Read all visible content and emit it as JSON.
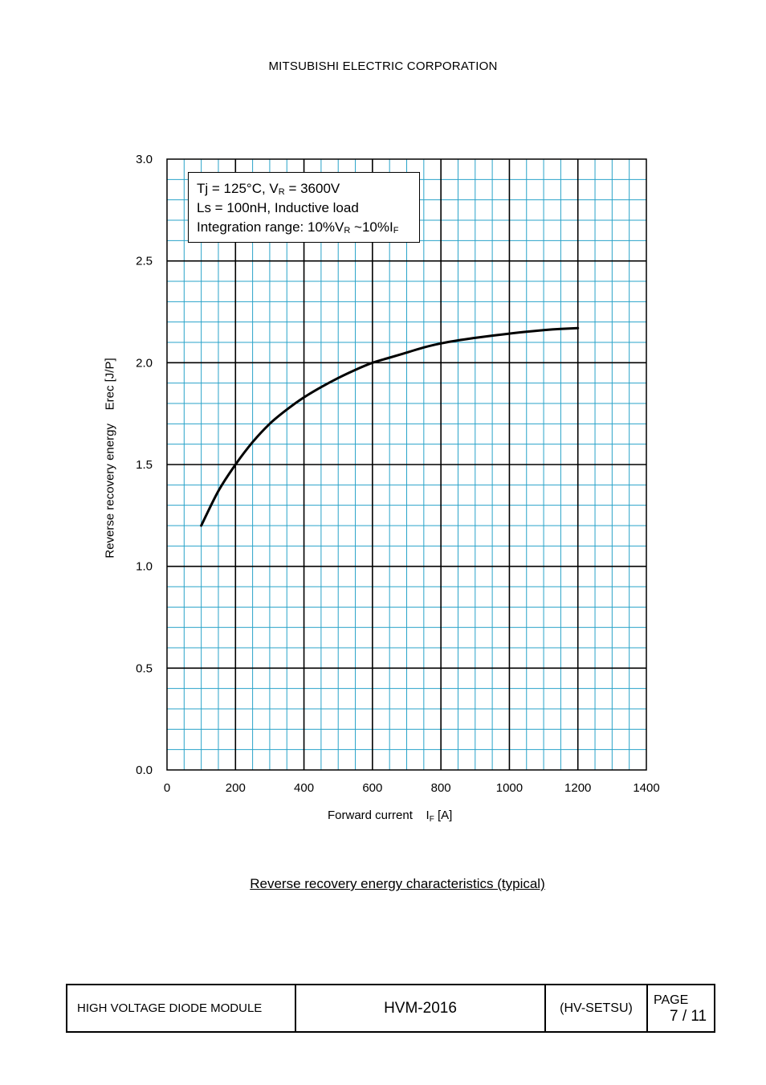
{
  "header": {
    "company": "MITSUBISHI ELECTRIC CORPORATION"
  },
  "annotation": {
    "line1_a": "Tj = 125°C, V",
    "line1_sub": "R",
    "line1_b": " = 3600V",
    "line2": "Ls = 100nH, Inductive load",
    "line3_a": "Integration range: 10%V",
    "line3_sub1": "R",
    "line3_b": " ~10%I",
    "line3_sub2": "F"
  },
  "chart_data": {
    "type": "line",
    "title": "",
    "caption": "Reverse recovery energy characteristics (typical)",
    "xlabel": {
      "text": "Forward current    I",
      "sub": "F",
      "unit": " [A]"
    },
    "ylabel": "Reverse recovery energy    Erec [J/P]",
    "xlim": [
      0,
      1400
    ],
    "ylim": [
      0.0,
      3.0
    ],
    "x_ticks": [
      "0",
      "200",
      "400",
      "600",
      "800",
      "1000",
      "1200",
      "1400"
    ],
    "y_ticks": [
      "0.0",
      "0.5",
      "1.0",
      "1.5",
      "2.0",
      "2.5",
      "3.0"
    ],
    "grid": {
      "major": true,
      "minor": true,
      "minor_color": "#29a3c9",
      "major_color": "#000000"
    },
    "series": [
      {
        "color": "#000000",
        "x": [
          100,
          150,
          200,
          250,
          300,
          350,
          400,
          450,
          500,
          550,
          600,
          650,
          700,
          750,
          800,
          850,
          900,
          950,
          1000,
          1050,
          1100,
          1150,
          1200
        ],
        "y": [
          1.2,
          1.37,
          1.5,
          1.61,
          1.7,
          1.77,
          1.83,
          1.88,
          1.925,
          1.965,
          2.0,
          2.025,
          2.05,
          2.075,
          2.095,
          2.11,
          2.122,
          2.133,
          2.143,
          2.152,
          2.16,
          2.166,
          2.17
        ]
      }
    ]
  },
  "footer": {
    "product": "HIGH VOLTAGE DIODE MODULE",
    "model": "HVM-2016",
    "code": "(HV-SETSU)",
    "page_label": "PAGE",
    "page_value": "7 / 11"
  }
}
